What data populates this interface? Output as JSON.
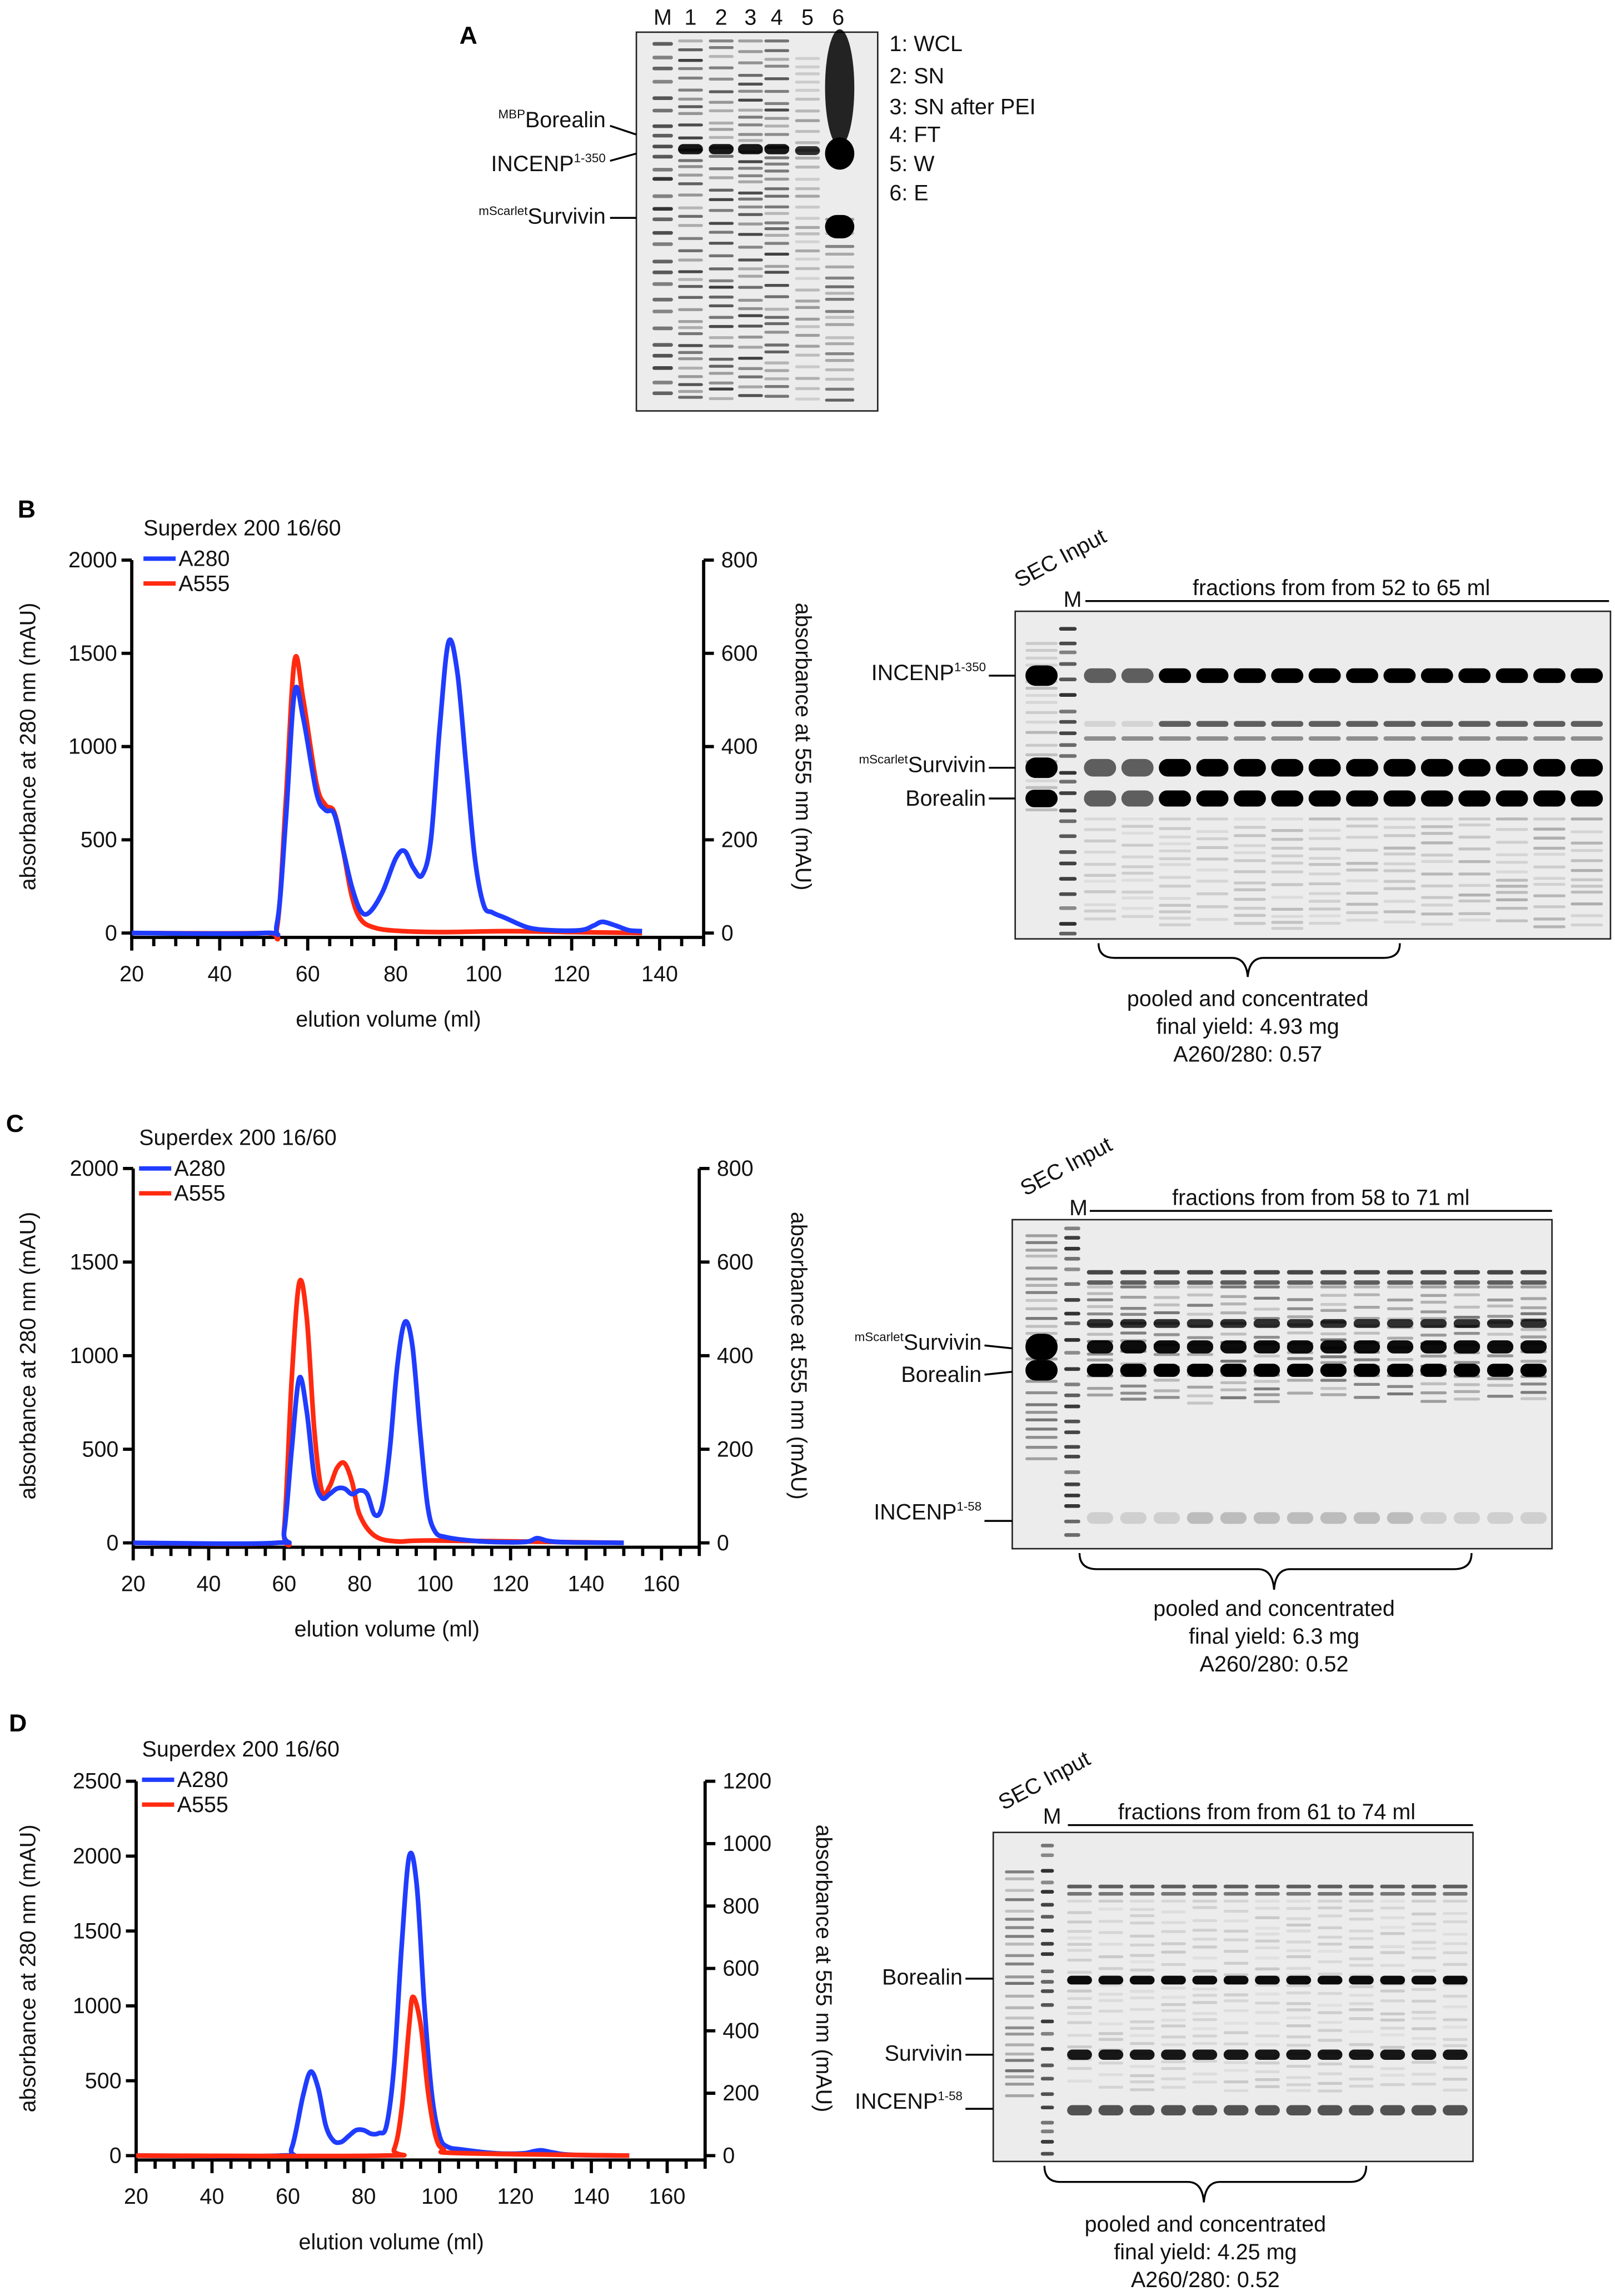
{
  "panel_a": {
    "letter": "A",
    "lane_labels": [
      "M",
      "1",
      "2",
      "3",
      "4",
      "5",
      "6"
    ],
    "band_labels": [
      {
        "sup": "MBP",
        "main": "Borealin"
      },
      {
        "sup": "",
        "main": "INCENP",
        "sup_after": "1-350"
      },
      {
        "sup": "mScarlet",
        "main": "Survivin"
      }
    ],
    "legend": [
      "1: WCL",
      "2: SN",
      "3: SN after PEI",
      "4: FT",
      "5: W",
      "6: E"
    ]
  },
  "panel_b": {
    "letter": "B",
    "gel": {
      "input_label": "SEC Input",
      "marker_label": "M",
      "fractions_label": "fractions from from 52 to 65 ml",
      "band_labels": [
        {
          "sup": "",
          "main": "INCENP",
          "sup_after": "1-350"
        },
        {
          "sup": "mScarlet",
          "main": "Survivin",
          "sup_after": ""
        },
        {
          "sup": "",
          "main": "Borealin",
          "sup_after": ""
        }
      ],
      "summary": [
        "pooled and concentrated",
        "final yield: 4.93 mg",
        "A260/280: 0.57"
      ]
    }
  },
  "panel_c": {
    "letter": "C",
    "gel": {
      "input_label": "SEC Input",
      "marker_label": "M",
      "fractions_label": "fractions from from 58 to 71 ml",
      "band_labels": [
        {
          "sup": "mScarlet",
          "main": "Survivin",
          "sup_after": ""
        },
        {
          "sup": "",
          "main": "Borealin",
          "sup_after": ""
        },
        {
          "sup": "",
          "main": "INCENP",
          "sup_after": "1-58"
        }
      ],
      "summary": [
        "pooled and concentrated",
        "final yield: 6.3 mg",
        "A260/280: 0.52"
      ]
    }
  },
  "panel_d": {
    "letter": "D",
    "gel": {
      "input_label": "SEC Input",
      "marker_label": "M",
      "fractions_label": "fractions from from 61 to 74 ml",
      "band_labels": [
        {
          "sup": "",
          "main": "Borealin",
          "sup_after": ""
        },
        {
          "sup": "",
          "main": "Survivin",
          "sup_after": ""
        },
        {
          "sup": "",
          "main": "INCENP",
          "sup_after": "1-58"
        }
      ],
      "summary": [
        "pooled and concentrated",
        "final yield: 4.25 mg",
        "A260/280: 0.52"
      ]
    }
  },
  "colors": {
    "A280": "#1f3cff",
    "A555": "#ff2a10"
  },
  "chart_data": [
    {
      "type": "line",
      "title": "Superdex 200 16/60",
      "xlabel": "elution volume (ml)",
      "ylabel": "absorbance at 280 nm (mAU)",
      "y2label": "absorbance at 555 nm (mAU)",
      "xlim": [
        20,
        150
      ],
      "xticks": [
        20,
        40,
        60,
        80,
        100,
        120,
        140
      ],
      "ylim": [
        0,
        2000
      ],
      "yticks": [
        0,
        500,
        1000,
        1500,
        2000
      ],
      "y2lim": [
        0,
        800
      ],
      "y2ticks": [
        0,
        200,
        400,
        600,
        800
      ],
      "legend": "top-left",
      "grid": false,
      "series": [
        {
          "name": "A280",
          "axis": "left",
          "x": [
            20,
            50,
            53,
            55,
            57,
            59,
            62,
            64,
            66,
            68,
            70,
            72,
            74,
            77,
            80,
            82,
            84,
            86,
            88,
            90,
            92,
            94,
            96,
            98,
            100,
            102,
            105,
            110,
            115,
            122,
            125,
            127,
            130,
            133,
            136
          ],
          "y": [
            0,
            0,
            50,
            600,
            1290,
            1150,
            750,
            660,
            640,
            450,
            250,
            120,
            110,
            220,
            400,
            440,
            350,
            310,
            500,
            1100,
            1560,
            1400,
            900,
            400,
            150,
            110,
            80,
            30,
            15,
            15,
            40,
            60,
            40,
            15,
            10
          ]
        },
        {
          "name": "A555",
          "axis": "right",
          "x": [
            20,
            50,
            53,
            55,
            57,
            59,
            62,
            64,
            66,
            68,
            70,
            72,
            75,
            80,
            90,
            105,
            120,
            136
          ],
          "y": [
            0,
            0,
            10,
            280,
            584,
            500,
            320,
            275,
            260,
            180,
            80,
            30,
            12,
            5,
            2,
            4,
            2,
            0
          ]
        }
      ]
    },
    {
      "type": "line",
      "title": "Superdex 200 16/60",
      "xlabel": "elution volume (ml)",
      "ylabel": "absorbance at 280 nm (mAU)",
      "y2label": "absorbance at 555 nm (mAU)",
      "xlim": [
        20,
        170
      ],
      "xticks": [
        20,
        40,
        60,
        80,
        100,
        120,
        140,
        160
      ],
      "ylim": [
        0,
        2000
      ],
      "yticks": [
        0,
        500,
        1000,
        1500,
        2000
      ],
      "y2lim": [
        0,
        800
      ],
      "y2ticks": [
        0,
        200,
        400,
        600,
        800
      ],
      "legend": "top-left",
      "grid": false,
      "series": [
        {
          "name": "A280",
          "axis": "left",
          "x": [
            20,
            58,
            60,
            62,
            64,
            66,
            68,
            70,
            72,
            74,
            76,
            78,
            80,
            82,
            84,
            86,
            88,
            90,
            92,
            94,
            96,
            98,
            100,
            103,
            108,
            115,
            124,
            127,
            130,
            135,
            150
          ],
          "y": [
            0,
            0,
            60,
            500,
            880,
            700,
            350,
            240,
            260,
            290,
            290,
            260,
            280,
            260,
            150,
            200,
            500,
            950,
            1180,
            1050,
            600,
            200,
            60,
            30,
            15,
            5,
            5,
            25,
            10,
            3,
            0
          ]
        },
        {
          "name": "A555",
          "axis": "right",
          "x": [
            20,
            58,
            60,
            62,
            64,
            66,
            68,
            70,
            72,
            74,
            76,
            78,
            80,
            84,
            90,
            100,
            150
          ],
          "y": [
            0,
            0,
            30,
            350,
            556,
            480,
            240,
            110,
            120,
            160,
            170,
            130,
            60,
            15,
            3,
            5,
            0
          ]
        }
      ]
    },
    {
      "type": "line",
      "title": "Superdex 200 16/60",
      "xlabel": "elution volume (ml)",
      "ylabel": "absorbance at 280 nm (mAU)",
      "y2label": "absorbance at 555 nm (mAU)",
      "xlim": [
        20,
        170
      ],
      "xticks": [
        20,
        40,
        60,
        80,
        100,
        120,
        140,
        160
      ],
      "ylim": [
        0,
        2500
      ],
      "yticks": [
        0,
        500,
        1000,
        1500,
        2000,
        2500
      ],
      "y2lim": [
        0,
        1200
      ],
      "y2ticks": [
        0,
        200,
        400,
        600,
        800,
        1000,
        1200
      ],
      "legend": "top-left",
      "grid": false,
      "series": [
        {
          "name": "A280",
          "axis": "left",
          "x": [
            20,
            58,
            61,
            64,
            66,
            68,
            70,
            72,
            74,
            76,
            78,
            80,
            82,
            84,
            86,
            88,
            90,
            92,
            94,
            96,
            98,
            100,
            102,
            106,
            115,
            122,
            125,
            127,
            130,
            135,
            150
          ],
          "y": [
            0,
            0,
            50,
            400,
            560,
            450,
            200,
            100,
            90,
            130,
            170,
            170,
            145,
            150,
            200,
            600,
            1400,
            2000,
            1800,
            1000,
            400,
            130,
            60,
            40,
            15,
            15,
            30,
            35,
            20,
            5,
            0
          ]
        },
        {
          "name": "A555",
          "axis": "right",
          "x": [
            20,
            85,
            88,
            90,
            92,
            93,
            95,
            97,
            99,
            101,
            105,
            150
          ],
          "y": [
            0,
            0,
            20,
            150,
            420,
            509,
            420,
            200,
            60,
            20,
            8,
            0
          ]
        }
      ]
    }
  ]
}
